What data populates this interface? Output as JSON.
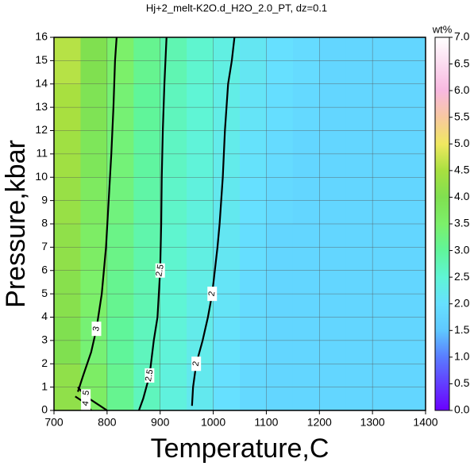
{
  "chart_data": {
    "type": "contour",
    "title": "Hj+2_melt-K2O.d_H2O_2.0_PT, dz=0.1",
    "x_label": "Temperature,C",
    "y_label": "Pressure,kbar",
    "colorbar_label": "wt%",
    "xlim": [
      700,
      1400
    ],
    "ylim": [
      0,
      16
    ],
    "xticks": [
      700,
      800,
      900,
      1000,
      1100,
      1200,
      1300,
      1400
    ],
    "yticks": [
      0,
      1,
      2,
      3,
      4,
      5,
      6,
      7,
      8,
      9,
      10,
      11,
      12,
      13,
      14,
      15,
      16
    ],
    "grid": true,
    "field": {
      "x": [
        725,
        775,
        825,
        875,
        925,
        975,
        1025,
        1075,
        1125,
        1175,
        1225,
        1275,
        1325,
        1375
      ],
      "y": [
        1,
        3,
        5,
        7,
        9,
        11,
        13,
        15
      ],
      "z": [
        [
          4.2,
          3.6,
          3.1,
          2.7,
          2.4,
          2.2,
          2.0,
          1.85,
          1.8,
          1.8,
          1.8,
          1.8,
          1.8,
          1.8
        ],
        [
          4.0,
          3.4,
          3.0,
          2.7,
          2.45,
          2.25,
          2.05,
          1.9,
          1.8,
          1.8,
          1.8,
          1.8,
          1.8,
          1.8
        ],
        [
          4.1,
          3.5,
          3.1,
          2.8,
          2.5,
          2.3,
          2.1,
          1.9,
          1.8,
          1.8,
          1.8,
          1.8,
          1.8,
          1.8
        ],
        [
          4.2,
          3.6,
          3.2,
          2.85,
          2.55,
          2.35,
          2.15,
          1.95,
          1.8,
          1.8,
          1.8,
          1.8,
          1.8,
          1.8
        ],
        [
          4.3,
          3.7,
          3.3,
          2.9,
          2.6,
          2.4,
          2.2,
          2.0,
          1.85,
          1.8,
          1.8,
          1.8,
          1.8,
          1.8
        ],
        [
          4.4,
          3.8,
          3.35,
          2.95,
          2.65,
          2.45,
          2.25,
          2.05,
          1.9,
          1.8,
          1.8,
          1.8,
          1.8,
          1.8
        ],
        [
          4.5,
          3.9,
          3.4,
          3.0,
          2.7,
          2.5,
          2.3,
          2.1,
          1.95,
          1.85,
          1.8,
          1.8,
          1.8,
          1.8
        ],
        [
          4.6,
          4.0,
          3.5,
          3.1,
          2.8,
          2.55,
          2.35,
          2.15,
          2.0,
          1.9,
          1.8,
          1.8,
          1.8,
          1.8
        ]
      ]
    },
    "colormap": [
      {
        "value": 0,
        "color": "#6a00ff"
      },
      {
        "value": 1,
        "color": "#5a7cff"
      },
      {
        "value": 1.5,
        "color": "#5fc8ff"
      },
      {
        "value": 2,
        "color": "#66e0ff"
      },
      {
        "value": 2.5,
        "color": "#5ff5d5"
      },
      {
        "value": 3,
        "color": "#60f59a"
      },
      {
        "value": 3.5,
        "color": "#7cf06a"
      },
      {
        "value": 4,
        "color": "#80e050"
      },
      {
        "value": 4.5,
        "color": "#a8e040"
      },
      {
        "value": 5,
        "color": "#f0e860"
      },
      {
        "value": 5.5,
        "color": "#f8c8a0"
      },
      {
        "value": 6,
        "color": "#f8b8e0"
      },
      {
        "value": 7,
        "color": "#ffffff"
      }
    ],
    "clim": [
      0,
      7
    ],
    "cticks": [
      {
        "value": 0,
        "label": "0.0"
      },
      {
        "value": 0.5,
        "label": "0.5"
      },
      {
        "value": 1,
        "label": "1.0"
      },
      {
        "value": 1.5,
        "label": "1.5"
      },
      {
        "value": 2,
        "label": "2.0"
      },
      {
        "value": 2.5,
        "label": "2.5"
      },
      {
        "value": 3,
        "label": "3.0"
      },
      {
        "value": 3.5,
        "label": "3.5"
      },
      {
        "value": 4,
        "label": "4.0"
      },
      {
        "value": 4.5,
        "label": "4.5"
      },
      {
        "value": 5,
        "label": "5.0"
      },
      {
        "value": 5.5,
        "label": "5.5"
      },
      {
        "value": 6,
        "label": "6.0"
      },
      {
        "value": 6.5,
        "label": "6.5"
      },
      {
        "value": 7,
        "label": "7.0"
      }
    ],
    "contours": [
      {
        "level": 2,
        "x": [
          960,
          962,
          968,
          980,
          990,
          998,
          1003,
          1008,
          1012,
          1015,
          1018,
          1020,
          1022,
          1025,
          1028,
          1035,
          1040
        ],
        "y": [
          0.2,
          1,
          2,
          3,
          4,
          5,
          6,
          7,
          8,
          9,
          10,
          11,
          12,
          13,
          14,
          15,
          16
        ]
      },
      {
        "level": 2.5,
        "x": [
          860,
          868,
          880,
          888,
          895,
          900,
          902,
          903,
          905,
          908,
          912
        ],
        "y": [
          0,
          0.5,
          1.5,
          3,
          4,
          6,
          8,
          10,
          12,
          14,
          16
        ]
      },
      {
        "level": 3,
        "x": [
          745,
          755,
          770,
          780,
          790,
          798,
          803,
          808,
          812,
          815,
          818
        ],
        "y": [
          0.8,
          1.5,
          2.5,
          3.5,
          5,
          7,
          9,
          11,
          13,
          15,
          16
        ]
      },
      {
        "level": 3.5,
        "x": [
          745,
          760,
          780,
          800
        ],
        "y": [
          1,
          0.6,
          0.3,
          0
        ]
      },
      {
        "level": 4,
        "x": [
          740,
          760,
          770
        ],
        "y": [
          0.6,
          0.3,
          0
        ]
      }
    ]
  }
}
